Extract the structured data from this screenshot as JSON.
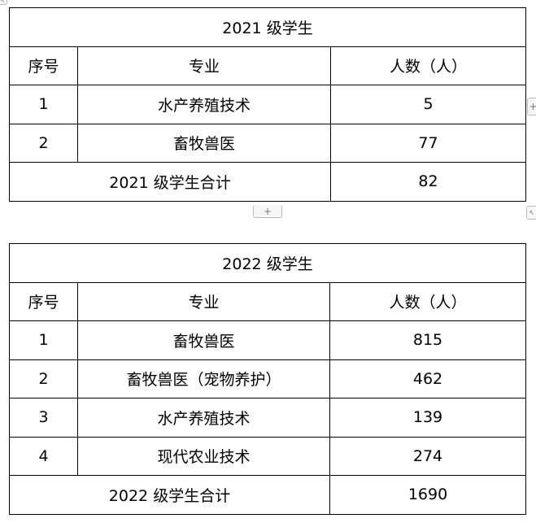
{
  "tables": [
    {
      "title": "2021 级学生",
      "headers": [
        "序号",
        "专业",
        "人数（人）"
      ],
      "rows": [
        [
          "1",
          "水产养殖技术",
          "5"
        ],
        [
          "2",
          "畜牧兽医",
          "77"
        ]
      ],
      "total_label": "2021 级学生合计",
      "total_value": "82"
    },
    {
      "title": "2022 级学生",
      "headers": [
        "序号",
        "专业",
        "人数（人）"
      ],
      "rows": [
        [
          "1",
          "畜牧兽医",
          "815"
        ],
        [
          "2",
          "畜牧兽医（宠物养护）",
          "462"
        ],
        [
          "3",
          "水产养殖技术",
          "139"
        ],
        [
          "4",
          "现代农业技术",
          "274"
        ]
      ],
      "total_label": "2022 级学生合计",
      "total_value": "1690"
    }
  ],
  "icons": {
    "add_row": "+",
    "add_column": "+",
    "move": "↖",
    "resize": "↖"
  }
}
